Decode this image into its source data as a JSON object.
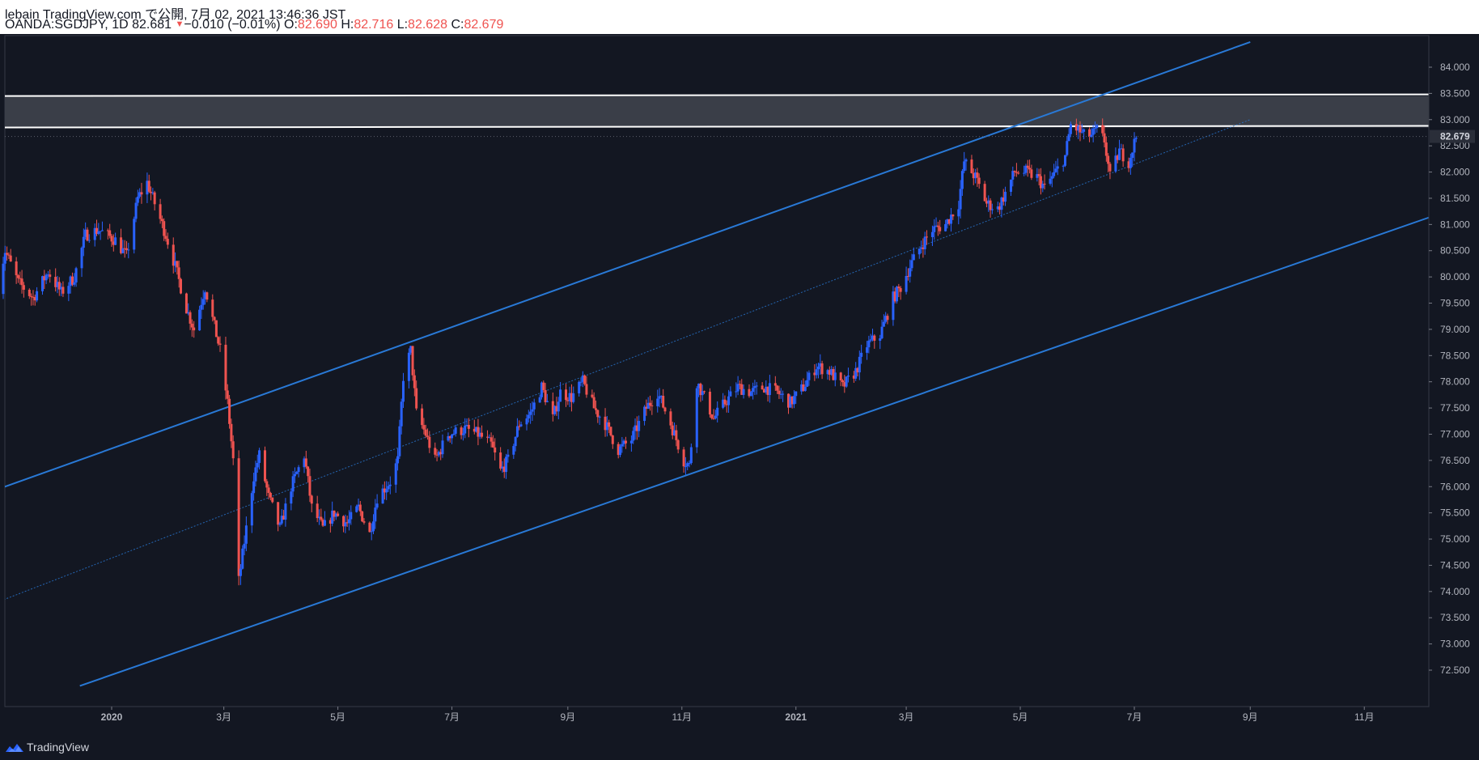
{
  "header": {
    "line1": "lebain TradingView.com で公開, 7月 02, 2021 13:46:36 JST",
    "symbol": "OANDA:SGDJPY, 1D 82.681",
    "change": "−0.010 (−0.01%)",
    "o_label": "O:",
    "o_value": "82.690",
    "h_label": "H:",
    "h_value": "82.716",
    "l_label": "L:",
    "l_value": "82.628",
    "c_label": "C:",
    "c_value": "82.679"
  },
  "footer": {
    "brand": "TradingView"
  },
  "colors": {
    "background": "#131722",
    "up": "#2962ff",
    "down": "#ef5350",
    "channel": "#2979d6",
    "zone_fill": "#3a3e48",
    "zone_border": "#ffffff",
    "axis_text": "#b2b5be"
  },
  "chart_data": {
    "type": "candlestick",
    "symbol": "OANDA:SGDJPY",
    "interval": "1D",
    "ylim": [
      72.0,
      84.5
    ],
    "y_ticks": [
      "72.500",
      "73.000",
      "73.500",
      "74.000",
      "74.500",
      "75.000",
      "75.500",
      "76.000",
      "76.500",
      "77.000",
      "77.500",
      "78.000",
      "78.500",
      "79.000",
      "79.500",
      "80.000",
      "80.500",
      "81.000",
      "81.500",
      "82.000",
      "82.500",
      "83.000",
      "83.500",
      "84.000"
    ],
    "x_ticks": [
      {
        "label": "2020",
        "date": "2020-01-01",
        "bold": true
      },
      {
        "label": "3月",
        "date": "2020-03-01"
      },
      {
        "label": "5月",
        "date": "2020-05-01"
      },
      {
        "label": "7月",
        "date": "2020-07-01"
      },
      {
        "label": "9月",
        "date": "2020-09-01"
      },
      {
        "label": "11月",
        "date": "2020-11-01"
      },
      {
        "label": "2021",
        "date": "2021-01-01",
        "bold": true
      },
      {
        "label": "3月",
        "date": "2021-03-01"
      },
      {
        "label": "5月",
        "date": "2021-05-01"
      },
      {
        "label": "7月",
        "date": "2021-07-01"
      },
      {
        "label": "9月",
        "date": "2021-09-01"
      },
      {
        "label": "11月",
        "date": "2021-11-01"
      }
    ],
    "last_price": "82.679",
    "resistance_zone": [
      82.85,
      83.45
    ],
    "channel": {
      "upper": [
        [
          "2019-11-01",
          75.95
        ],
        [
          "2021-09-01",
          84.48
        ]
      ],
      "middle": [
        [
          "2019-11-01",
          73.8
        ],
        [
          "2021-09-01",
          83.0
        ]
      ],
      "lower": [
        [
          "2019-12-15",
          72.2
        ],
        [
          "2021-12-15",
          81.25
        ]
      ]
    },
    "price_path": [
      [
        "2019-11-01",
        79.8
      ],
      [
        "2019-11-05",
        80.5
      ],
      [
        "2019-11-12",
        79.9
      ],
      [
        "2019-11-20",
        79.6
      ],
      [
        "2019-11-28",
        80.1
      ],
      [
        "2019-12-05",
        79.7
      ],
      [
        "2019-12-12",
        80.0
      ],
      [
        "2019-12-18",
        80.8
      ],
      [
        "2019-12-25",
        80.9
      ],
      [
        "2020-01-03",
        80.7
      ],
      [
        "2020-01-09",
        80.4
      ],
      [
        "2020-01-15",
        81.5
      ],
      [
        "2020-01-20",
        81.8
      ],
      [
        "2020-01-24",
        81.4
      ],
      [
        "2020-01-30",
        80.8
      ],
      [
        "2020-02-04",
        80.2
      ],
      [
        "2020-02-10",
        79.4
      ],
      [
        "2020-02-14",
        79.0
      ],
      [
        "2020-02-20",
        79.8
      ],
      [
        "2020-02-24",
        79.2
      ],
      [
        "2020-02-28",
        78.6
      ],
      [
        "2020-03-03",
        77.6
      ],
      [
        "2020-03-06",
        76.5
      ],
      [
        "2020-03-09",
        74.2
      ],
      [
        "2020-03-13",
        75.2
      ],
      [
        "2020-03-17",
        76.2
      ],
      [
        "2020-03-20",
        76.6
      ],
      [
        "2020-03-25",
        75.8
      ],
      [
        "2020-03-31",
        75.2
      ],
      [
        "2020-04-06",
        76.0
      ],
      [
        "2020-04-13",
        76.6
      ],
      [
        "2020-04-17",
        75.6
      ],
      [
        "2020-04-23",
        75.2
      ],
      [
        "2020-04-29",
        75.5
      ],
      [
        "2020-05-06",
        75.3
      ],
      [
        "2020-05-12",
        75.6
      ],
      [
        "2020-05-18",
        75.1
      ],
      [
        "2020-05-22",
        75.8
      ],
      [
        "2020-05-29",
        76.1
      ],
      [
        "2020-06-02",
        76.5
      ],
      [
        "2020-06-05",
        78.1
      ],
      [
        "2020-06-09",
        78.6
      ],
      [
        "2020-06-12",
        77.4
      ],
      [
        "2020-06-17",
        77.0
      ],
      [
        "2020-06-22",
        76.5
      ],
      [
        "2020-06-29",
        77.0
      ],
      [
        "2020-07-08",
        77.1
      ],
      [
        "2020-07-15",
        77.0
      ],
      [
        "2020-07-22",
        76.8
      ],
      [
        "2020-07-27",
        76.3
      ],
      [
        "2020-07-31",
        76.5
      ],
      [
        "2020-08-06",
        77.2
      ],
      [
        "2020-08-12",
        77.4
      ],
      [
        "2020-08-18",
        77.9
      ],
      [
        "2020-08-24",
        77.3
      ],
      [
        "2020-08-28",
        77.8
      ],
      [
        "2020-09-03",
        77.7
      ],
      [
        "2020-09-09",
        78.0
      ],
      [
        "2020-09-15",
        77.5
      ],
      [
        "2020-09-21",
        77.2
      ],
      [
        "2020-09-28",
        76.7
      ],
      [
        "2020-10-05",
        76.9
      ],
      [
        "2020-10-13",
        77.5
      ],
      [
        "2020-10-19",
        77.8
      ],
      [
        "2020-10-26",
        77.2
      ],
      [
        "2020-11-02",
        76.5
      ],
      [
        "2020-11-05",
        76.4
      ],
      [
        "2020-11-09",
        78.0
      ],
      [
        "2020-11-13",
        77.7
      ],
      [
        "2020-11-18",
        77.3
      ],
      [
        "2020-11-24",
        77.6
      ],
      [
        "2020-12-01",
        77.9
      ],
      [
        "2020-12-08",
        77.8
      ],
      [
        "2020-12-15",
        77.9
      ],
      [
        "2020-12-22",
        77.8
      ],
      [
        "2020-12-29",
        77.6
      ],
      [
        "2021-01-05",
        77.9
      ],
      [
        "2021-01-12",
        78.3
      ],
      [
        "2021-01-19",
        78.2
      ],
      [
        "2021-01-26",
        77.9
      ],
      [
        "2021-02-02",
        78.2
      ],
      [
        "2021-02-08",
        78.7
      ],
      [
        "2021-02-15",
        78.9
      ],
      [
        "2021-02-22",
        79.6
      ],
      [
        "2021-02-26",
        79.8
      ],
      [
        "2021-03-03",
        80.2
      ],
      [
        "2021-03-09",
        80.6
      ],
      [
        "2021-03-15",
        80.9
      ],
      [
        "2021-03-22",
        81.0
      ],
      [
        "2021-03-29",
        81.4
      ],
      [
        "2021-04-01",
        82.2
      ],
      [
        "2021-04-07",
        81.9
      ],
      [
        "2021-04-13",
        81.4
      ],
      [
        "2021-04-19",
        81.3
      ],
      [
        "2021-04-23",
        81.6
      ],
      [
        "2021-04-28",
        82.0
      ],
      [
        "2021-05-04",
        82.0
      ],
      [
        "2021-05-10",
        81.9
      ],
      [
        "2021-05-14",
        81.7
      ],
      [
        "2021-05-20",
        82.0
      ],
      [
        "2021-05-25",
        82.3
      ],
      [
        "2021-05-28",
        82.9
      ],
      [
        "2021-06-01",
        82.8
      ],
      [
        "2021-06-04",
        82.7
      ],
      [
        "2021-06-08",
        82.7
      ],
      [
        "2021-06-11",
        82.8
      ],
      [
        "2021-06-15",
        82.6
      ],
      [
        "2021-06-18",
        81.9
      ],
      [
        "2021-06-23",
        82.4
      ],
      [
        "2021-06-28",
        82.2
      ],
      [
        "2021-07-02",
        82.68
      ]
    ]
  }
}
